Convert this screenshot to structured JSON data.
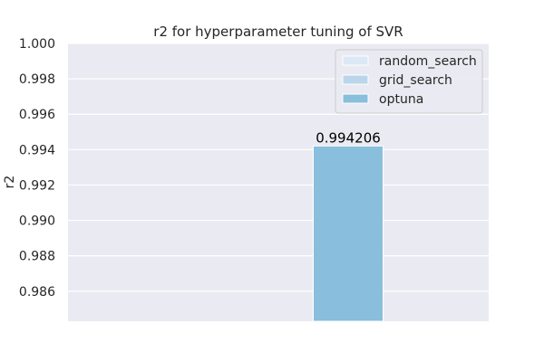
{
  "chart_data": {
    "type": "bar",
    "title": "r2 for hyperparameter tuning of SVR",
    "xlabel": "",
    "ylabel": "r2",
    "ylim": [
      0.9843,
      1.0
    ],
    "y_ticks": [
      0.986,
      0.988,
      0.99,
      0.992,
      0.994,
      0.996,
      0.998,
      1.0
    ],
    "y_tick_labels": [
      "0.986",
      "0.988",
      "0.990",
      "0.992",
      "0.994",
      "0.996",
      "0.998",
      "1.000"
    ],
    "x_tick_labels": [],
    "grid": true,
    "legend_position": "top-right",
    "series": [
      {
        "name": "random_search",
        "value": null,
        "value_label": "",
        "color": "#dbe9f6"
      },
      {
        "name": "grid_search",
        "value": null,
        "value_label": "",
        "color": "#bad6eb"
      },
      {
        "name": "optuna",
        "value": 0.994206,
        "value_label": "0.994206",
        "color": "#89bedc"
      }
    ],
    "colors": {
      "plot_background": "#eaeaf2",
      "grid": "#ffffff",
      "figure_background": "#ffffff"
    }
  }
}
